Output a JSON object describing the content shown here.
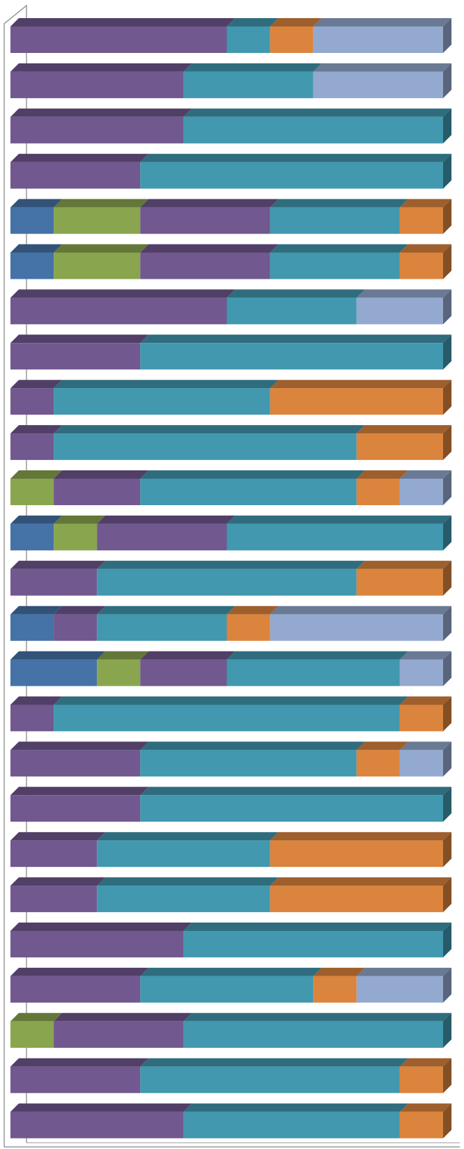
{
  "chart_data": {
    "type": "bar",
    "orientation": "horizontal",
    "stacked": "100%",
    "three_d": true,
    "grid": false,
    "legend": "none",
    "xlim": [
      0,
      10
    ],
    "series": [
      {
        "color": "#4572A7",
        "values": [
          0,
          0,
          0,
          0,
          1,
          1,
          0,
          0,
          0,
          0,
          0,
          1,
          0,
          1,
          2,
          0,
          0,
          0,
          0,
          0,
          0,
          0,
          0,
          0,
          0
        ]
      },
      {
        "color": "#89A54E",
        "values": [
          0,
          0,
          0,
          0,
          2,
          2,
          0,
          0,
          0,
          0,
          1,
          1,
          0,
          0,
          1,
          0,
          0,
          0,
          0,
          0,
          0,
          0,
          1,
          0,
          0
        ]
      },
      {
        "color": "#71588F",
        "values": [
          5,
          4,
          4,
          3,
          3,
          3,
          5,
          3,
          1,
          1,
          2,
          3,
          2,
          1,
          2,
          1,
          3,
          3,
          2,
          2,
          4,
          3,
          3,
          3,
          4
        ]
      },
      {
        "color": "#4198AF",
        "values": [
          1,
          3,
          6,
          7,
          3,
          3,
          3,
          7,
          5,
          7,
          5,
          5,
          6,
          3,
          4,
          8,
          5,
          7,
          4,
          4,
          6,
          4,
          6,
          6,
          5
        ]
      },
      {
        "color": "#DB843D",
        "values": [
          1,
          0,
          0,
          0,
          1,
          1,
          0,
          0,
          4,
          2,
          1,
          0,
          2,
          1,
          0,
          1,
          1,
          0,
          4,
          4,
          0,
          1,
          0,
          1,
          1
        ]
      },
      {
        "color": "#93A9CF",
        "values": [
          3,
          3,
          0,
          0,
          0,
          0,
          2,
          0,
          0,
          0,
          1,
          0,
          0,
          4,
          1,
          0,
          1,
          0,
          0,
          0,
          0,
          2,
          0,
          0,
          0
        ]
      }
    ]
  }
}
